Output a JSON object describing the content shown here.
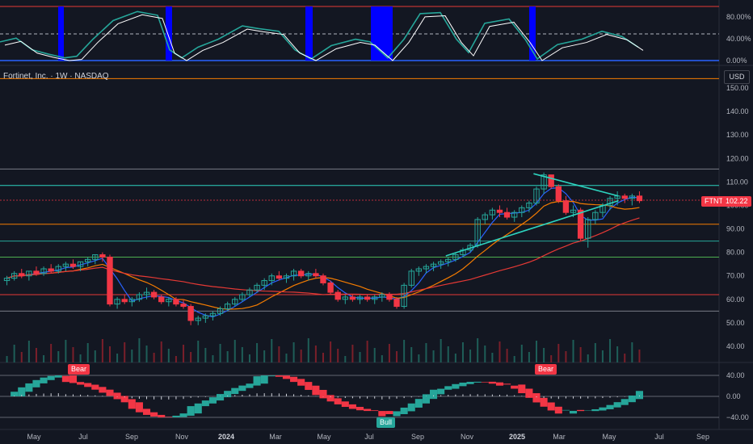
{
  "symbol": {
    "title": "Fortinet, Inc. · 1W · NASDAQ",
    "ticker": "FTNT",
    "last_price": "102.22",
    "currency": "USD"
  },
  "colors": {
    "up": "#26a69a",
    "down": "#f23645",
    "teal_line": "#2dd4bf",
    "orange": "#f57c00",
    "red": "#e53935",
    "blue": "#2962ff",
    "purple": "#9c27b0"
  },
  "time_axis": [
    "May",
    "Jul",
    "Sep",
    "Nov",
    "2024",
    "Mar",
    "May",
    "Jul",
    "Sep",
    "Nov",
    "2025",
    "Mar",
    "May",
    "Jul",
    "Sep"
  ],
  "osc_top": {
    "levels": [
      "80.00%",
      "40.00%",
      "0.00%"
    ]
  },
  "price_axis": [
    "150.00",
    "140.00",
    "130.00",
    "120.00",
    "110.00",
    "100.00",
    "90.00",
    "80.00",
    "70.00",
    "60.00",
    "50.00",
    "40.00"
  ],
  "osc_bottom": {
    "levels": [
      "40.00",
      "0.00",
      "−40.00"
    ],
    "labels": {
      "bear1": "Bear",
      "bear2": "Bear",
      "bull": "Bull"
    }
  },
  "chart_data": {
    "type": "candlestick",
    "ylim": [
      35,
      155
    ],
    "horizontal_levels": [
      154,
      115.5,
      108.5,
      92,
      84.8,
      78,
      62,
      55
    ],
    "triangle": {
      "upper": [
        [
          0.742,
          113.5
        ],
        [
          0.86,
          104
        ]
      ],
      "lower": [
        [
          0.62,
          78.5
        ],
        [
          0.86,
          102
        ]
      ]
    },
    "candles": [
      [
        68,
        70,
        66,
        69
      ],
      [
        69,
        72,
        68,
        71
      ],
      [
        71,
        73,
        69,
        70
      ],
      [
        70,
        72,
        68,
        72
      ],
      [
        72,
        74,
        70,
        71
      ],
      [
        71,
        74,
        70,
        73
      ],
      [
        73,
        75,
        71,
        72
      ],
      [
        72,
        75,
        71,
        74
      ],
      [
        74,
        76,
        72,
        75
      ],
      [
        75,
        77,
        73,
        74
      ],
      [
        74,
        76,
        72,
        76
      ],
      [
        76,
        78,
        74,
        77
      ],
      [
        77,
        79,
        75,
        79
      ],
      [
        79,
        80,
        76,
        78
      ],
      [
        78,
        79,
        57,
        58
      ],
      [
        58,
        61,
        56,
        60
      ],
      [
        60,
        62,
        58,
        59
      ],
      [
        59,
        61,
        57,
        60
      ],
      [
        60,
        63,
        59,
        62
      ],
      [
        62,
        65,
        60,
        63
      ],
      [
        63,
        64,
        60,
        61
      ],
      [
        61,
        62,
        58,
        59
      ],
      [
        59,
        61,
        57,
        60
      ],
      [
        60,
        61,
        57,
        58
      ],
      [
        58,
        60,
        56,
        57
      ],
      [
        57,
        58,
        49,
        51
      ],
      [
        51,
        53,
        49,
        52
      ],
      [
        52,
        54,
        50,
        53
      ],
      [
        53,
        55,
        51,
        54
      ],
      [
        54,
        57,
        53,
        56
      ],
      [
        56,
        59,
        55,
        58
      ],
      [
        58,
        61,
        57,
        60
      ],
      [
        60,
        63,
        59,
        62
      ],
      [
        62,
        65,
        61,
        64
      ],
      [
        64,
        67,
        63,
        66
      ],
      [
        66,
        69,
        64,
        68
      ],
      [
        68,
        71,
        66,
        70
      ],
      [
        70,
        72,
        68,
        69
      ],
      [
        69,
        71,
        67,
        70
      ],
      [
        70,
        73,
        68,
        72
      ],
      [
        72,
        73,
        69,
        70
      ],
      [
        70,
        72,
        68,
        71
      ],
      [
        71,
        73,
        69,
        70
      ],
      [
        70,
        71,
        66,
        67
      ],
      [
        67,
        68,
        62,
        63
      ],
      [
        63,
        64,
        59,
        60
      ],
      [
        60,
        62,
        58,
        61
      ],
      [
        61,
        62,
        59,
        60
      ],
      [
        60,
        62,
        58,
        61
      ],
      [
        61,
        62,
        59,
        60
      ],
      [
        60,
        62,
        58,
        61
      ],
      [
        61,
        63,
        59,
        62
      ],
      [
        62,
        63,
        59,
        60
      ],
      [
        60,
        61,
        56,
        57
      ],
      [
        57,
        67,
        56,
        66
      ],
      [
        66,
        73,
        65,
        72
      ],
      [
        72,
        74,
        70,
        73
      ],
      [
        73,
        75,
        71,
        74
      ],
      [
        74,
        76,
        72,
        75
      ],
      [
        75,
        77,
        73,
        76
      ],
      [
        76,
        78,
        74,
        77
      ],
      [
        77,
        80,
        76,
        79
      ],
      [
        79,
        82,
        78,
        81
      ],
      [
        81,
        84,
        80,
        83
      ],
      [
        83,
        95,
        82,
        94
      ],
      [
        94,
        97,
        92,
        96
      ],
      [
        96,
        99,
        94,
        98
      ],
      [
        98,
        100,
        95,
        97
      ],
      [
        97,
        99,
        94,
        95
      ],
      [
        95,
        98,
        93,
        97
      ],
      [
        97,
        100,
        95,
        99
      ],
      [
        99,
        102,
        97,
        101
      ],
      [
        101,
        108,
        100,
        107
      ],
      [
        107,
        114,
        105,
        113
      ],
      [
        113,
        112,
        107,
        108
      ],
      [
        108,
        109,
        101,
        102
      ],
      [
        102,
        104,
        96,
        97
      ],
      [
        97,
        100,
        95,
        98
      ],
      [
        98,
        99,
        85,
        86
      ],
      [
        86,
        95,
        82,
        94
      ],
      [
        94,
        98,
        92,
        97
      ],
      [
        97,
        101,
        95,
        100
      ],
      [
        100,
        104,
        98,
        103
      ],
      [
        103,
        106,
        100,
        104
      ],
      [
        104,
        105,
        101,
        103
      ],
      [
        103,
        105,
        100,
        104
      ],
      [
        104,
        106,
        101,
        102
      ]
    ]
  }
}
